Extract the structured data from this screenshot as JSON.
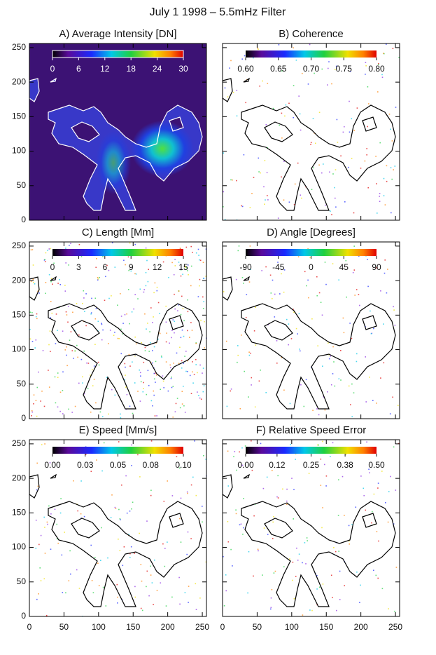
{
  "title": "July 1 1998 – 5.5mHz Filter",
  "chart_data": [
    {
      "type": "heatmap",
      "title": "A) Average Intensity [DN]",
      "xlim": [
        0,
        256
      ],
      "ylim": [
        0,
        256
      ],
      "xticks": [
        0,
        50,
        100,
        150,
        200,
        250
      ],
      "yticks": [
        0,
        50,
        100,
        150,
        200,
        250
      ],
      "colorbar": {
        "lim": [
          0,
          30
        ],
        "ticks": [
          0,
          6,
          12,
          18,
          24,
          30
        ]
      }
    },
    {
      "type": "heatmap",
      "title": "B) Coherence",
      "xlim": [
        0,
        256
      ],
      "ylim": [
        0,
        256
      ],
      "xticks": [
        0,
        50,
        100,
        150,
        200,
        250
      ],
      "yticks": [
        0,
        50,
        100,
        150,
        200,
        250
      ],
      "colorbar": {
        "lim": [
          0.6,
          0.8
        ],
        "ticks": [
          {
            "value": 0.6,
            "label": "0.60"
          },
          0.65,
          {
            "value": 0.7,
            "label": "0.70"
          },
          0.75,
          {
            "value": 0.8,
            "label": "0.80"
          }
        ]
      }
    },
    {
      "type": "heatmap",
      "title": "C) Length [Mm]",
      "xlim": [
        0,
        256
      ],
      "ylim": [
        0,
        256
      ],
      "xticks": [
        0,
        50,
        100,
        150,
        200,
        250
      ],
      "yticks": [
        0,
        50,
        100,
        150,
        200,
        250
      ],
      "colorbar": {
        "lim": [
          0,
          15
        ],
        "ticks": [
          0,
          3,
          6,
          9,
          12,
          15
        ]
      }
    },
    {
      "type": "heatmap",
      "title": "D) Angle [Degrees]",
      "xlim": [
        0,
        256
      ],
      "ylim": [
        0,
        256
      ],
      "xticks": [
        0,
        50,
        100,
        150,
        200,
        250
      ],
      "yticks": [
        0,
        50,
        100,
        150,
        200,
        250
      ],
      "colorbar": {
        "lim": [
          -90,
          90
        ],
        "ticks": [
          -90,
          -45,
          0,
          45,
          90
        ]
      }
    },
    {
      "type": "heatmap",
      "title": "E) Speed [Mm/s]",
      "xlim": [
        0,
        256
      ],
      "ylim": [
        0,
        256
      ],
      "xticks": [
        0,
        50,
        100,
        150,
        200,
        250
      ],
      "yticks": [
        0,
        50,
        100,
        150,
        200,
        250
      ],
      "colorbar": {
        "lim": [
          0,
          0.1
        ],
        "ticks": [
          {
            "value": 0,
            "label": "0.00"
          },
          {
            "value": 0.025,
            "label": "0.03"
          },
          {
            "value": 0.05,
            "label": "0.05"
          },
          {
            "value": 0.075,
            "label": "0.08"
          },
          {
            "value": 0.1,
            "label": "0.10"
          }
        ]
      }
    },
    {
      "type": "heatmap",
      "title": "F) Relative Speed Error",
      "xlim": [
        0,
        256
      ],
      "ylim": [
        0,
        256
      ],
      "xticks": [
        0,
        50,
        100,
        150,
        200,
        250
      ],
      "yticks": [
        0,
        50,
        100,
        150,
        200,
        250
      ],
      "colorbar": {
        "lim": [
          0,
          0.5
        ],
        "ticks": [
          {
            "value": 0,
            "label": "0.00"
          },
          {
            "value": 0.12,
            "label": "0.12"
          },
          {
            "value": 0.25,
            "label": "0.25"
          },
          {
            "value": 0.38,
            "label": "0.38"
          },
          {
            "value": 0.5,
            "label": "0.50"
          }
        ]
      }
    }
  ]
}
